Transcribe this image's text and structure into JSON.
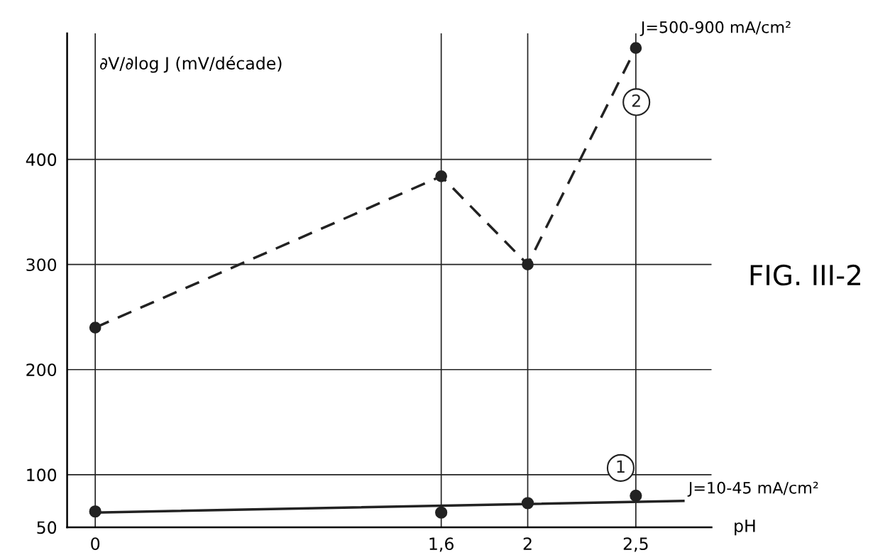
{
  "chart_data": {
    "type": "line",
    "title": "FIG. III-2",
    "xlabel": "pH",
    "ylabel": "∂V/∂log J (mV/décade)",
    "xlim": [
      -0.13,
      2.85
    ],
    "ylim": [
      50,
      520
    ],
    "xticks": [
      0,
      {
        "value": 1.6,
        "label": "1,6"
      },
      2,
      {
        "value": 2.5,
        "label": "2,5"
      }
    ],
    "yticks": [
      50,
      100,
      200,
      300,
      400
    ],
    "grid": true,
    "series": [
      {
        "name": "2",
        "color": "#222222",
        "marker": "circle",
        "line_style": "dashed",
        "x": [
          0,
          1.6,
          2,
          2.5
        ],
        "values": [
          240,
          384,
          300,
          506
        ]
      },
      {
        "name": "1",
        "type": "scatter",
        "color": "#222222",
        "marker": "circle",
        "x": [
          0,
          1.6,
          2,
          2.5
        ],
        "values": [
          65,
          64,
          73,
          80
        ]
      },
      {
        "type": "line",
        "color": "#222222",
        "marker": "none",
        "line_style": "solid",
        "x": [
          0,
          2.72
        ],
        "values": [
          64,
          75
        ]
      }
    ],
    "annotations": [
      {
        "text": "J=500-900 mA/cm²",
        "x": 2.5,
        "y": 506
      },
      {
        "text": "J=10-45 mA/cm²",
        "x": 2.72,
        "y": 75
      }
    ]
  }
}
